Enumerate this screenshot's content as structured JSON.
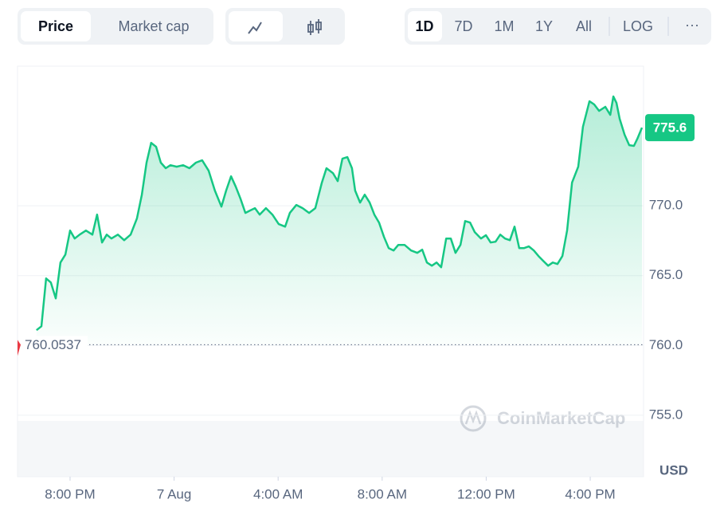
{
  "toolbar": {
    "view_tabs": [
      "Price",
      "Market cap"
    ],
    "ranges": [
      "1D",
      "7D",
      "1M",
      "1Y",
      "All"
    ],
    "scale_button": "LOG",
    "more": "···"
  },
  "chart_data": {
    "type": "line",
    "watermark": "CoinMarketCap",
    "y_label": "USD",
    "x": [
      -5.29,
      -5.1,
      -4.92,
      -4.74,
      -4.55,
      -4.37,
      -4.18,
      -4.0,
      -3.82,
      -3.63,
      -3.39,
      -3.14,
      -2.96,
      -2.77,
      -2.59,
      -2.41,
      -2.16,
      -1.92,
      -1.67,
      -1.43,
      -1.24,
      -1.06,
      -0.88,
      -0.69,
      -0.51,
      -0.32,
      -0.14,
      0.1,
      0.35,
      0.59,
      0.84,
      1.08,
      1.33,
      1.57,
      1.82,
      2.0,
      2.19,
      2.37,
      2.55,
      2.74,
      2.92,
      3.11,
      3.29,
      3.53,
      3.78,
      4.02,
      4.27,
      4.45,
      4.7,
      4.94,
      5.19,
      5.43,
      5.68,
      5.86,
      6.11,
      6.29,
      6.47,
      6.66,
      6.84,
      6.96,
      7.15,
      7.33,
      7.52,
      7.7,
      7.88,
      8.07,
      8.25,
      8.44,
      8.62,
      8.86,
      9.11,
      9.35,
      9.54,
      9.72,
      9.91,
      10.09,
      10.27,
      10.46,
      10.64,
      10.82,
      11.01,
      11.19,
      11.38,
      11.56,
      11.8,
      11.99,
      12.17,
      12.36,
      12.54,
      12.72,
      12.91,
      13.09,
      13.27,
      13.46,
      13.64,
      13.83,
      14.01,
      14.19,
      14.38,
      14.56,
      14.74,
      14.93,
      15.11,
      15.3,
      15.54,
      15.72,
      15.97,
      16.15,
      16.34,
      16.58,
      16.77,
      16.89,
      17.01,
      17.13,
      17.32,
      17.5,
      17.68,
      17.81,
      17.99
    ],
    "series": [
      {
        "name": "Price",
        "color": "#16c784",
        "values": [
          761.09,
          761.37,
          764.8,
          764.51,
          763.37,
          765.94,
          766.51,
          768.23,
          767.66,
          767.94,
          768.23,
          767.94,
          769.37,
          767.37,
          767.94,
          767.66,
          767.94,
          767.54,
          767.94,
          769.09,
          770.8,
          773.09,
          774.51,
          774.23,
          773.09,
          772.69,
          772.91,
          772.8,
          772.91,
          772.69,
          773.09,
          773.26,
          772.51,
          771.09,
          769.94,
          771.09,
          772.11,
          771.37,
          770.51,
          769.49,
          769.66,
          769.83,
          769.37,
          769.83,
          769.37,
          768.69,
          768.51,
          769.49,
          770.06,
          769.83,
          769.49,
          769.83,
          771.66,
          772.69,
          772.34,
          771.77,
          773.37,
          773.49,
          772.69,
          771.09,
          770.23,
          770.8,
          770.23,
          769.37,
          768.8,
          767.77,
          766.97,
          766.8,
          767.2,
          767.2,
          766.8,
          766.63,
          766.86,
          765.94,
          765.71,
          765.94,
          765.6,
          767.66,
          767.66,
          766.63,
          767.2,
          768.91,
          768.8,
          768.11,
          767.66,
          767.89,
          767.37,
          767.43,
          767.94,
          767.66,
          767.54,
          768.51,
          766.97,
          766.97,
          767.09,
          766.8,
          766.4,
          766.06,
          765.71,
          765.94,
          765.83,
          766.4,
          768.23,
          771.66,
          772.8,
          775.66,
          777.49,
          777.26,
          776.8,
          777.09,
          776.51,
          777.83,
          777.37,
          776.23,
          775.09,
          774.34,
          774.29,
          774.8,
          775.6
        ]
      }
    ],
    "xlim": [
      -6.02,
      18.05
    ],
    "xticks": [
      {
        "value": -4,
        "label": "8:00 PM"
      },
      {
        "value": 0,
        "label": "7 Aug"
      },
      {
        "value": 4,
        "label": "4:00 AM"
      },
      {
        "value": 8,
        "label": "8:00 AM"
      },
      {
        "value": 12,
        "label": "12:00 PM"
      },
      {
        "value": 16,
        "label": "4:00 PM"
      }
    ],
    "ylim": [
      750.6,
      780
    ],
    "yticks": [
      {
        "value": 755,
        "label": "755.0"
      },
      {
        "value": 760,
        "label": "760.0"
      },
      {
        "value": 765,
        "label": "765.0"
      },
      {
        "value": 770,
        "label": "770.0"
      }
    ],
    "reference": {
      "value": 760.0537,
      "label": "760.0537"
    },
    "last_price": {
      "value": 775.6,
      "label": "775.6"
    },
    "grid": true
  }
}
